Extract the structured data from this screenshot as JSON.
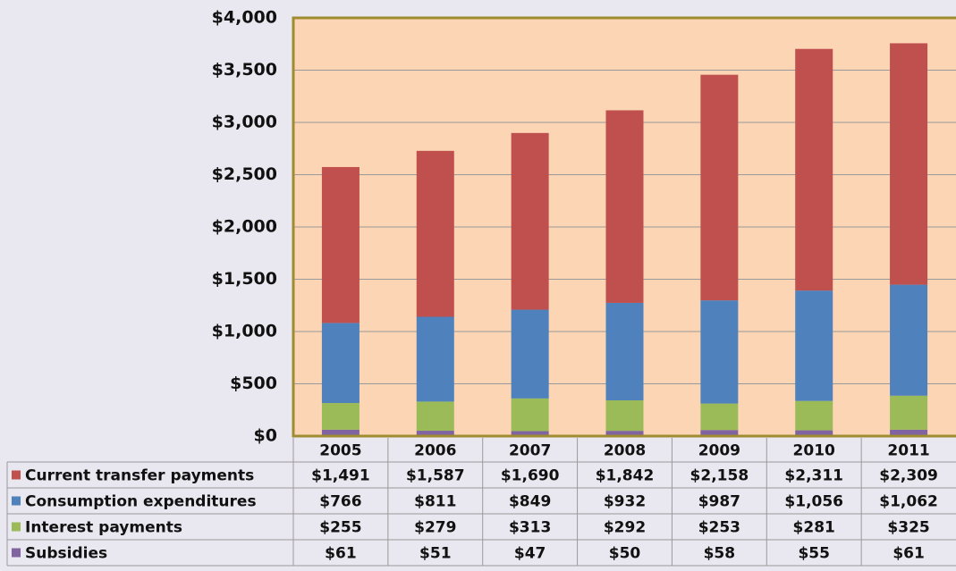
{
  "chart_data": {
    "type": "bar",
    "stacked": true,
    "categories": [
      "2005",
      "2006",
      "2007",
      "2008",
      "2009",
      "2010",
      "2011"
    ],
    "series": [
      {
        "name": "Current transfer payments",
        "color": "#c0504d",
        "values": [
          1491,
          1587,
          1690,
          1842,
          2158,
          2311,
          2309
        ],
        "value_labels": [
          "$1,491",
          "$1,587",
          "$1,690",
          "$1,842",
          "$2,158",
          "$2,311",
          "$2,309"
        ]
      },
      {
        "name": "Consumption expenditures",
        "color": "#4f81bd",
        "values": [
          766,
          811,
          849,
          932,
          987,
          1056,
          1062
        ],
        "value_labels": [
          "$766",
          "$811",
          "$849",
          "$932",
          "$987",
          "$1,056",
          "$1,062"
        ]
      },
      {
        "name": "Interest payments",
        "color": "#9bbb59",
        "values": [
          255,
          279,
          313,
          292,
          253,
          281,
          325
        ],
        "value_labels": [
          "$255",
          "$279",
          "$313",
          "$292",
          "$253",
          "$281",
          "$325"
        ]
      },
      {
        "name": "Subsidies",
        "color": "#8064a2",
        "values": [
          61,
          51,
          47,
          50,
          58,
          55,
          61
        ],
        "value_labels": [
          "$61",
          "$51",
          "$47",
          "$50",
          "$58",
          "$55",
          "$61"
        ]
      }
    ],
    "ylim": [
      0,
      4000
    ],
    "yticks": [
      {
        "value": 0,
        "label": "$0"
      },
      {
        "value": 500,
        "label": "$500"
      },
      {
        "value": 1000,
        "label": "$1,000"
      },
      {
        "value": 1500,
        "label": "$1,500"
      },
      {
        "value": 2000,
        "label": "$2,000"
      },
      {
        "value": 2500,
        "label": "$2,500"
      },
      {
        "value": 3000,
        "label": "$3,000"
      },
      {
        "value": 3500,
        "label": "$3,500"
      },
      {
        "value": 4000,
        "label": "$4,000"
      }
    ],
    "grid": true
  }
}
